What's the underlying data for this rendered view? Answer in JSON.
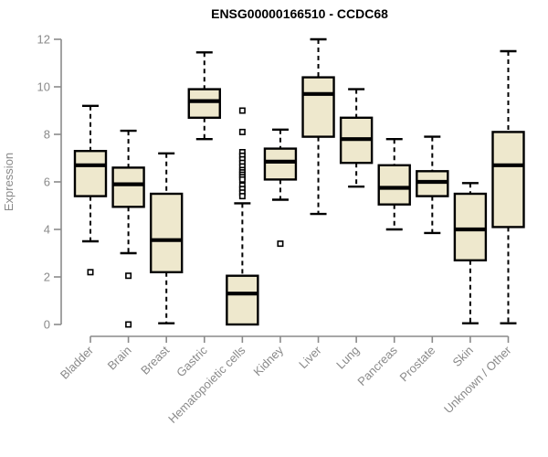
{
  "chart_data": {
    "type": "boxplot",
    "title": "ENSG00000166510 - CCDC68",
    "xlabel": "",
    "ylabel": "Expression",
    "ylim": [
      0,
      12
    ],
    "yticks": [
      0,
      2,
      4,
      6,
      8,
      10,
      12
    ],
    "grid": false,
    "legend": "none",
    "categories": [
      "Bladder",
      "Brain",
      "Breast",
      "Gastric",
      "Hematopoietic cells",
      "Kidney",
      "Liver",
      "Lung",
      "Pancreas",
      "Prostate",
      "Skin",
      "Unknown / Other"
    ],
    "boxes": [
      {
        "label": "Bladder",
        "whisker_low": 3.5,
        "q1": 5.4,
        "median": 6.7,
        "q3": 7.3,
        "whisker_high": 9.2,
        "outliers": [
          2.2
        ]
      },
      {
        "label": "Brain",
        "whisker_low": 3.0,
        "q1": 4.95,
        "median": 5.9,
        "q3": 6.6,
        "whisker_high": 8.15,
        "outliers": [
          2.05,
          0.0
        ]
      },
      {
        "label": "Breast",
        "whisker_low": 0.05,
        "q1": 2.2,
        "median": 3.55,
        "q3": 5.5,
        "whisker_high": 7.2,
        "outliers": []
      },
      {
        "label": "Gastric",
        "whisker_low": 7.8,
        "q1": 8.7,
        "median": 9.4,
        "q3": 9.9,
        "whisker_high": 11.45,
        "outliers": []
      },
      {
        "label": "Hematopoietic cells",
        "whisker_low": 0.0,
        "q1": 0.0,
        "median": 1.3,
        "q3": 2.05,
        "whisker_high": 5.1,
        "outliers": [
          9.0,
          8.1,
          7.25,
          7.1,
          6.95,
          6.8,
          6.65,
          6.5,
          6.4,
          6.3,
          6.2,
          6.1,
          5.85,
          5.7,
          5.55,
          5.4
        ]
      },
      {
        "label": "Kidney",
        "whisker_low": 5.25,
        "q1": 6.1,
        "median": 6.85,
        "q3": 7.4,
        "whisker_high": 8.2,
        "outliers": [
          3.4
        ]
      },
      {
        "label": "Liver",
        "whisker_low": 4.65,
        "q1": 7.9,
        "median": 9.7,
        "q3": 10.4,
        "whisker_high": 12.0,
        "outliers": []
      },
      {
        "label": "Lung",
        "whisker_low": 5.8,
        "q1": 6.8,
        "median": 7.8,
        "q3": 8.7,
        "whisker_high": 9.9,
        "outliers": []
      },
      {
        "label": "Pancreas",
        "whisker_low": 4.0,
        "q1": 5.05,
        "median": 5.75,
        "q3": 6.7,
        "whisker_high": 7.8,
        "outliers": []
      },
      {
        "label": "Prostate",
        "whisker_low": 3.85,
        "q1": 5.4,
        "median": 6.0,
        "q3": 6.45,
        "whisker_high": 7.9,
        "outliers": []
      },
      {
        "label": "Skin",
        "whisker_low": 0.05,
        "q1": 2.7,
        "median": 4.0,
        "q3": 5.5,
        "whisker_high": 5.95,
        "outliers": []
      },
      {
        "label": "Unknown / Other",
        "whisker_low": 0.05,
        "q1": 4.1,
        "median": 6.7,
        "q3": 8.1,
        "whisker_high": 11.5,
        "outliers": []
      }
    ],
    "colors": {
      "box_fill": "#EEE8CD",
      "box_stroke": "#000000",
      "median_stroke": "#000000",
      "whisker_stroke": "#000000",
      "outlier_stroke": "#000000",
      "outlier_fill": "#ffffff",
      "axis": "#8a8a8a",
      "background": "#ffffff"
    }
  }
}
